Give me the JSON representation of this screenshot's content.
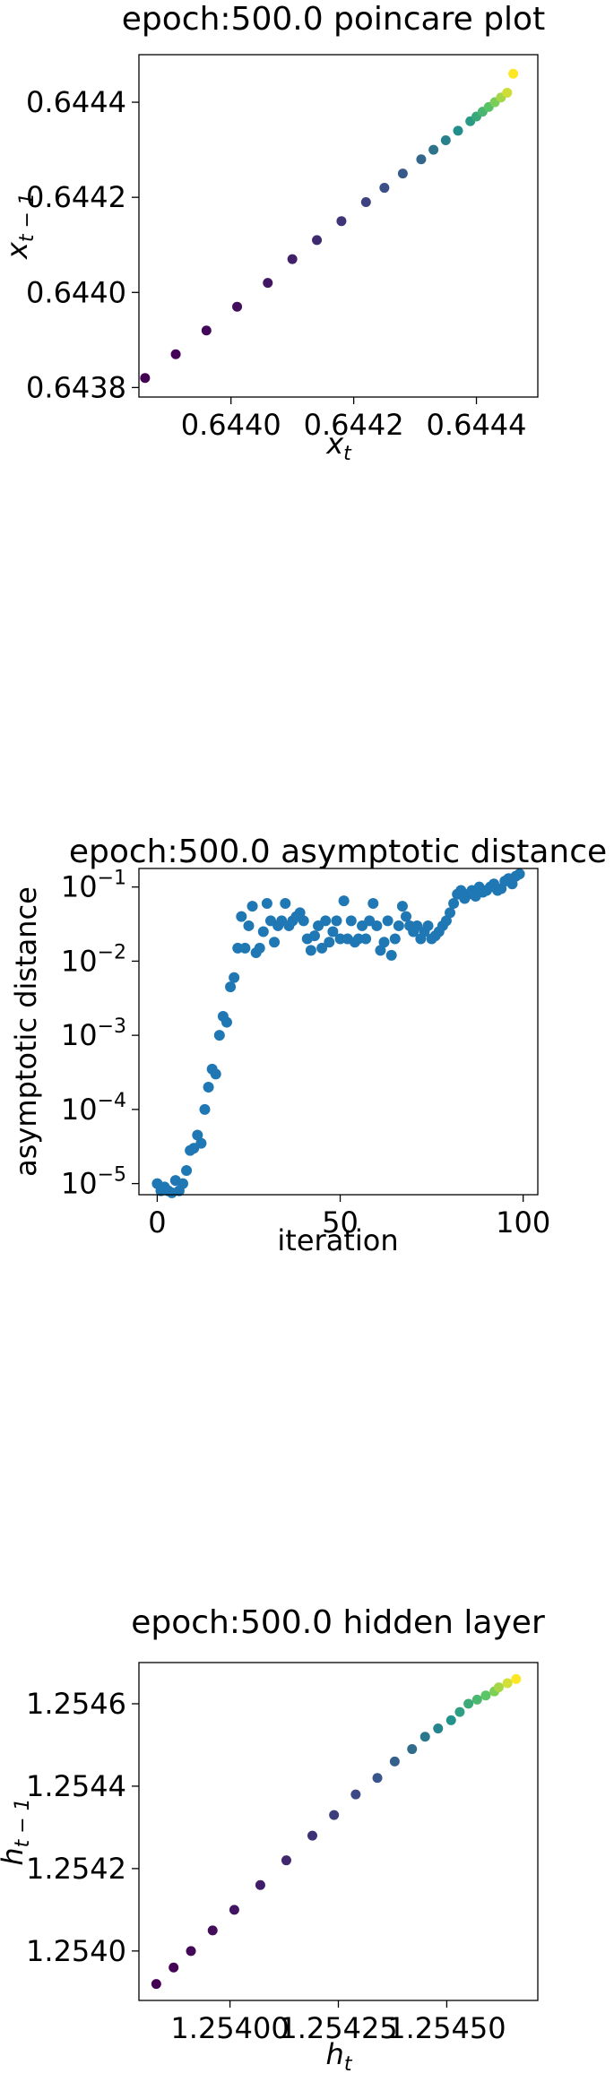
{
  "chart_data": [
    {
      "type": "scatter",
      "title": "epoch:500.0 poincare plot",
      "xlabel": "x_t",
      "ylabel": "x_{t-1}",
      "xlim": [
        0.64385,
        0.6445
      ],
      "ylim": [
        0.64378,
        0.6445
      ],
      "xticks": [
        "0.6440",
        "0.6442",
        "0.6444"
      ],
      "xtick_values": [
        0.644,
        0.6442,
        0.6444
      ],
      "yticks": [
        "0.6438",
        "0.6440",
        "0.6442",
        "0.6444"
      ],
      "ytick_values": [
        0.6438,
        0.644,
        0.6442,
        0.6444
      ],
      "colormap": "viridis",
      "grid": false,
      "x": [
        0.64386,
        0.64391,
        0.64396,
        0.64401,
        0.64406,
        0.6441,
        0.64414,
        0.64418,
        0.64422,
        0.64425,
        0.64428,
        0.64431,
        0.64433,
        0.64435,
        0.64437,
        0.64439,
        0.6444,
        0.64441,
        0.64442,
        0.64443,
        0.64444,
        0.64445,
        0.64446
      ],
      "y": [
        0.64382,
        0.64387,
        0.64392,
        0.64397,
        0.64402,
        0.64407,
        0.64411,
        0.64415,
        0.64419,
        0.64422,
        0.64425,
        0.64428,
        0.6443,
        0.64432,
        0.64434,
        0.64436,
        0.64437,
        0.64438,
        0.64439,
        0.6444,
        0.64441,
        0.64442,
        0.64446
      ]
    },
    {
      "type": "scatter",
      "title": "epoch:500.0 asymptotic distance",
      "xlabel": "iteration",
      "ylabel": "asymptotic distance",
      "yscale": "log",
      "xlim": [
        -5,
        104
      ],
      "ylim_exp": [
        -5.15,
        -0.75
      ],
      "xticks": [
        "0",
        "50",
        "100"
      ],
      "xtick_values": [
        0,
        50,
        100
      ],
      "yticks": [
        "10^-5",
        "10^-4",
        "10^-3",
        "10^-2",
        "10^-1"
      ],
      "ytick_exponents": [
        -5,
        -4,
        -3,
        -2,
        -1
      ],
      "color": "#1f77b4",
      "grid": false,
      "x": [
        0,
        1,
        2,
        3,
        4,
        5,
        6,
        7,
        8,
        9,
        10,
        11,
        12,
        13,
        14,
        15,
        16,
        17,
        18,
        19,
        20,
        21,
        22,
        23,
        24,
        25,
        26,
        27,
        28,
        29,
        30,
        31,
        32,
        33,
        34,
        35,
        36,
        37,
        38,
        39,
        40,
        41,
        42,
        43,
        44,
        45,
        46,
        47,
        48,
        49,
        50,
        51,
        52,
        53,
        54,
        55,
        56,
        57,
        58,
        59,
        60,
        61,
        62,
        63,
        64,
        65,
        66,
        67,
        68,
        69,
        70,
        71,
        72,
        73,
        74,
        75,
        76,
        77,
        78,
        79,
        80,
        81,
        82,
        83,
        84,
        85,
        86,
        87,
        88,
        89,
        90,
        91,
        92,
        93,
        94,
        95,
        96,
        97,
        98,
        99
      ],
      "y": [
        1e-05,
        8e-06,
        9e-06,
        8e-06,
        7.5e-06,
        1.1e-05,
        8e-06,
        1e-05,
        1.5e-05,
        2.8e-05,
        3e-05,
        4.5e-05,
        3.5e-05,
        0.0001,
        0.0002,
        0.00035,
        0.0003,
        0.001,
        0.0018,
        0.0015,
        0.0045,
        0.006,
        0.015,
        0.04,
        0.015,
        0.03,
        0.055,
        0.013,
        0.015,
        0.025,
        0.06,
        0.035,
        0.018,
        0.03,
        0.035,
        0.06,
        0.03,
        0.035,
        0.04,
        0.045,
        0.035,
        0.02,
        0.014,
        0.022,
        0.03,
        0.015,
        0.035,
        0.018,
        0.025,
        0.035,
        0.02,
        0.065,
        0.02,
        0.035,
        0.018,
        0.02,
        0.03,
        0.02,
        0.035,
        0.06,
        0.03,
        0.014,
        0.018,
        0.035,
        0.012,
        0.02,
        0.03,
        0.055,
        0.04,
        0.03,
        0.025,
        0.03,
        0.02,
        0.025,
        0.03,
        0.02,
        0.022,
        0.025,
        0.03,
        0.035,
        0.045,
        0.06,
        0.08,
        0.09,
        0.07,
        0.08,
        0.09,
        0.075,
        0.1,
        0.085,
        0.09,
        0.1,
        0.11,
        0.09,
        0.095,
        0.12,
        0.13,
        0.11,
        0.14,
        0.15
      ]
    },
    {
      "type": "scatter",
      "title": "epoch:500.0 hidden layer",
      "xlabel": "h_t",
      "ylabel": "h_{t-1}",
      "xlim": [
        1.25379,
        1.25471
      ],
      "ylim": [
        1.25388,
        1.2547
      ],
      "xticks": [
        "1.25400",
        "1.25425",
        "1.25450"
      ],
      "xtick_values": [
        1.254,
        1.25425,
        1.2545
      ],
      "yticks": [
        "1.2540",
        "1.2542",
        "1.2544",
        "1.2546"
      ],
      "ytick_values": [
        1.254,
        1.2542,
        1.2544,
        1.2546
      ],
      "colormap": "viridis",
      "grid": false,
      "x": [
        1.25383,
        1.25387,
        1.25391,
        1.25396,
        1.25401,
        1.25407,
        1.25413,
        1.25419,
        1.25424,
        1.25429,
        1.25434,
        1.25438,
        1.25442,
        1.25445,
        1.25448,
        1.25451,
        1.25453,
        1.25455,
        1.25457,
        1.25459,
        1.25461,
        1.25462,
        1.25464,
        1.25466
      ],
      "y": [
        1.25392,
        1.25396,
        1.254,
        1.25405,
        1.2541,
        1.25416,
        1.25422,
        1.25428,
        1.25433,
        1.25438,
        1.25442,
        1.25446,
        1.25449,
        1.25452,
        1.25454,
        1.25456,
        1.25458,
        1.2546,
        1.25461,
        1.25462,
        1.25463,
        1.25464,
        1.25465,
        1.25466
      ]
    }
  ]
}
